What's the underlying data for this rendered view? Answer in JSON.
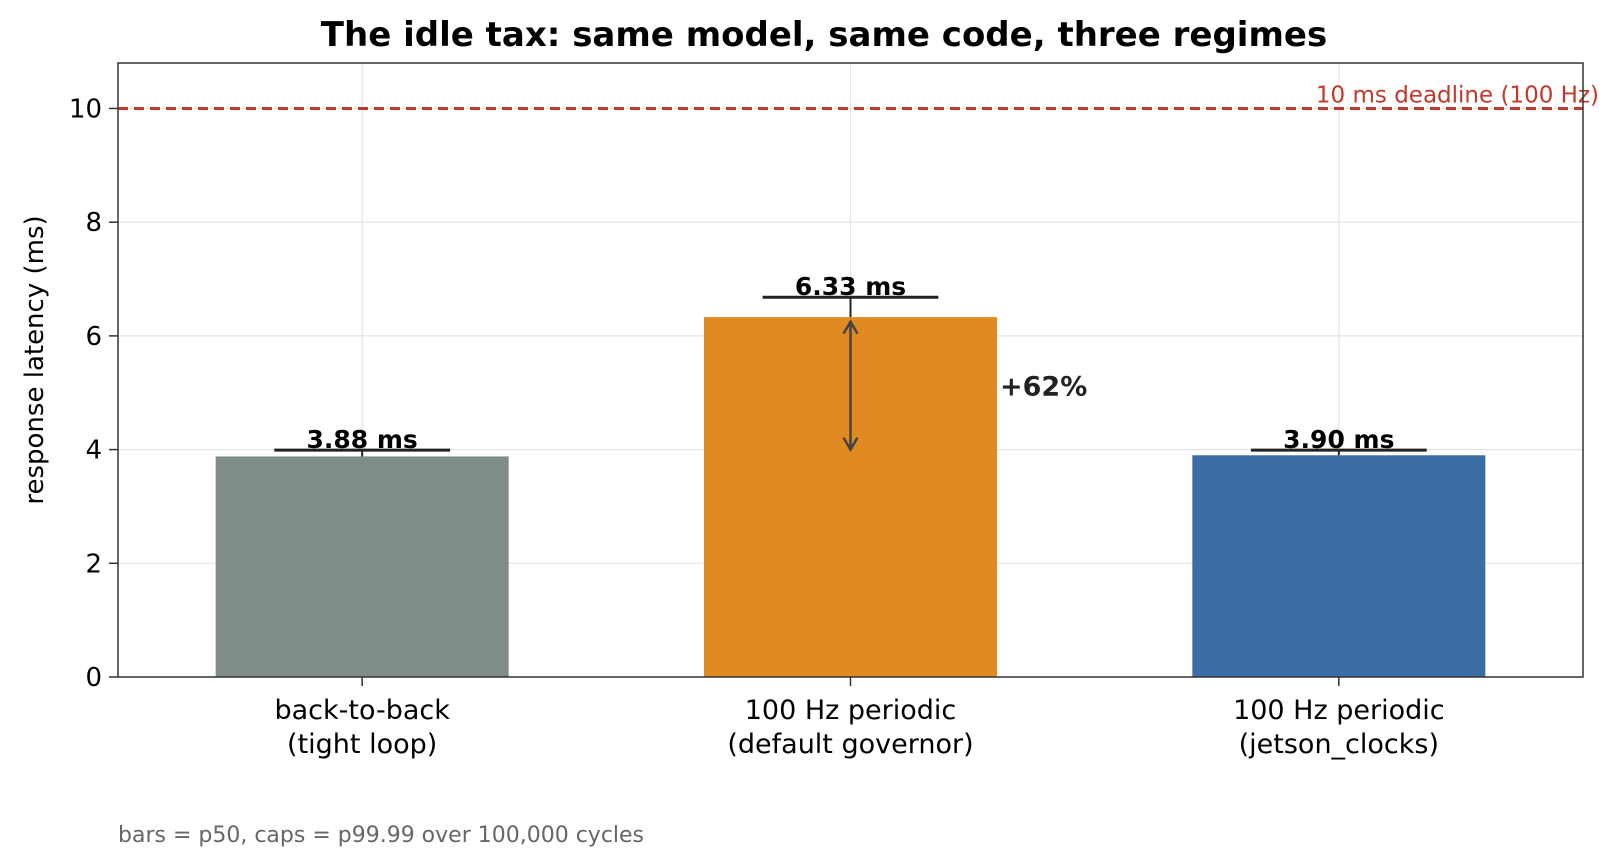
{
  "chart_data": {
    "type": "bar",
    "title": "The idle tax: same model, same code, three regimes",
    "ylabel": "response latency (ms)",
    "xlabel": "",
    "ylim": [
      0,
      10.8
    ],
    "yticks": [
      "0",
      "2",
      "4",
      "6",
      "8",
      "10"
    ],
    "grid": true,
    "categories": [
      {
        "line1": "back-to-back",
        "line2": "(tight loop)"
      },
      {
        "line1": "100 Hz periodic",
        "line2": "(default governor)"
      },
      {
        "line1": "100 Hz periodic",
        "line2": "(jetson_clocks)"
      }
    ],
    "series": [
      {
        "metric": "p50",
        "values": [
          3.88,
          6.33,
          3.9
        ],
        "value_labels": [
          "3.88 ms",
          "6.33 ms",
          "3.90 ms"
        ],
        "colors": [
          "#7f8c8a",
          "#e08a21",
          "#3a6ea5"
        ]
      },
      {
        "metric": "p99.99",
        "values": [
          3.99,
          6.68,
          3.99
        ]
      }
    ],
    "reference_line": {
      "value": 10,
      "label": "10 ms deadline (100 Hz)",
      "color": "#c0392b",
      "style": "dashed"
    },
    "annotation": {
      "from": 4.0,
      "to": 6.25,
      "category_index": 1,
      "text": "+62%"
    },
    "footnote": "bars = p50, caps = p99.99 over 100,000 cycles"
  }
}
